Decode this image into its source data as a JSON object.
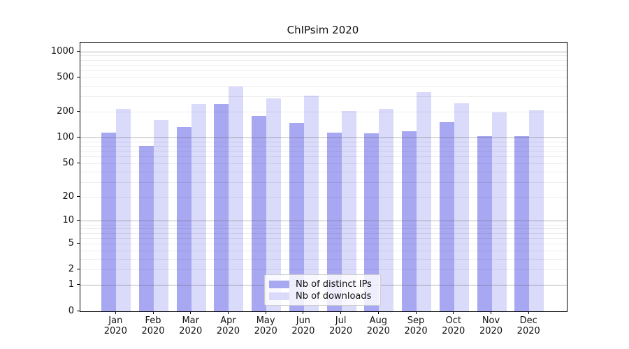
{
  "title": "ChIPsim 2020",
  "colors": {
    "distinct_ips": "#a8a8f2",
    "downloads": "#dadafa",
    "axis": "#000000",
    "major_grid": "#7d7d7d",
    "minor_grid": "#ececec",
    "legend_border": "#cccccc"
  },
  "legend": {
    "items": [
      {
        "label": "Nb of distinct IPs",
        "series": "distinct_ips"
      },
      {
        "label": "Nb of downloads",
        "series": "downloads"
      }
    ],
    "position": "lower center"
  },
  "chart_data": {
    "type": "bar",
    "title": "ChIPsim 2020",
    "categories": [
      "Jan 2020",
      "Feb 2020",
      "Mar 2020",
      "Apr 2020",
      "May 2020",
      "Jun 2020",
      "Jul 2020",
      "Aug 2020",
      "Sep 2020",
      "Oct 2020",
      "Nov 2020",
      "Dec 2020"
    ],
    "series": [
      {
        "name": "Nb of distinct IPs",
        "color": "#a8a8f2",
        "values": [
          115,
          81,
          135,
          250,
          181,
          150,
          116,
          114,
          120,
          152,
          106,
          106
        ]
      },
      {
        "name": "Nb of downloads",
        "color": "#dadafa",
        "values": [
          218,
          162,
          248,
          398,
          289,
          313,
          205,
          218,
          340,
          255,
          198,
          209
        ]
      }
    ],
    "xlabel": "",
    "ylabel": "",
    "yscale": "log1p",
    "yticks": [
      0,
      1,
      2,
      5,
      10,
      20,
      50,
      100,
      200,
      500,
      1000
    ],
    "ylim": [
      0,
      1280
    ],
    "grid": true,
    "minor_grid": true,
    "legend_position": "lower center"
  }
}
